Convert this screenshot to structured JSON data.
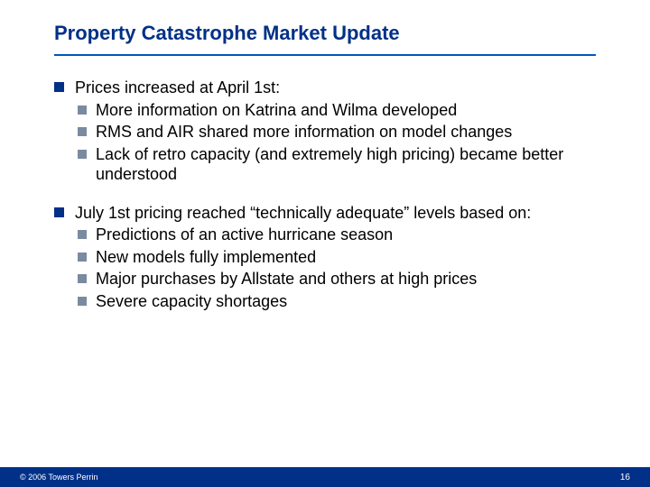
{
  "title": "Property Catastrophe Market Update",
  "colors": {
    "title": "#003087",
    "rule": "#0057b7",
    "bullet_primary": "#003087",
    "bullet_secondary": "#7a8aa0",
    "footer_bg": "#003087",
    "footer_text": "#ffffff",
    "body_text": "#000000",
    "background": "#ffffff"
  },
  "typography": {
    "title_fontsize": 22,
    "body_fontsize": 18,
    "footer_fontsize": 9
  },
  "bullets": [
    {
      "text": "Prices increased at April 1st:",
      "sub": [
        "More information on Katrina and Wilma developed",
        "RMS and AIR shared more information on model changes",
        "Lack of retro capacity (and extremely high pricing) became better understood"
      ]
    },
    {
      "text": "July 1st pricing reached “technically adequate” levels based on:",
      "sub": [
        "Predictions of an active hurricane season",
        "New models fully implemented",
        "Major purchases by Allstate and others at high prices",
        "Severe capacity shortages"
      ]
    }
  ],
  "footer": {
    "copyright": "© 2006 Towers Perrin",
    "page": "16"
  }
}
